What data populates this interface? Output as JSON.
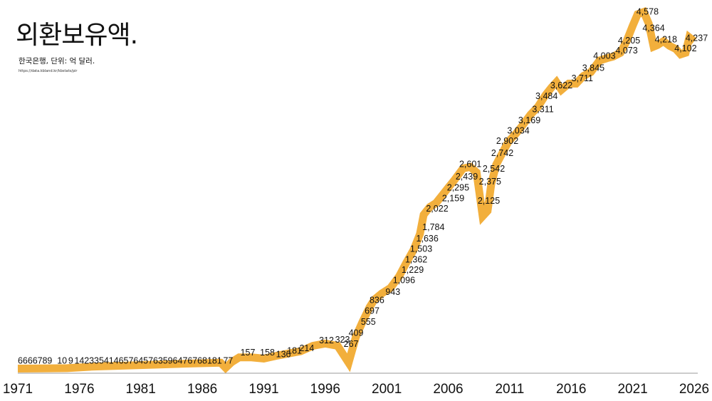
{
  "header": {
    "title": "외환보유액.",
    "subtitle": "한국은행, 단위: 억 달러.",
    "source": "https://data.kbland.kr/kbstats/pir"
  },
  "chart_data": {
    "type": "line",
    "title": "외환보유액.",
    "subtitle": "한국은행, 단위: 억 달러.",
    "xlabel": "",
    "ylabel": "억 달러",
    "xlim": [
      1971,
      2026
    ],
    "ylim": [
      0,
      4600
    ],
    "grid": false,
    "color": "#F2AF3C",
    "x_ticks": [
      "1971",
      "1976",
      "1981",
      "1986",
      "1991",
      "1996",
      "2001",
      "2006",
      "2011",
      "2016",
      "2021",
      "2026"
    ],
    "series": [
      {
        "name": "외환보유액",
        "points": [
          [
            1971,
            5
          ],
          [
            1973,
            7
          ],
          [
            1975,
            10
          ],
          [
            1977,
            30
          ],
          [
            1980,
            45
          ],
          [
            1983,
            60
          ],
          [
            1985,
            70
          ],
          [
            1987.5,
            80
          ],
          [
            1987.9,
            15
          ],
          [
            1988.4,
            90
          ],
          [
            1989,
            150
          ],
          [
            1990,
            150
          ],
          [
            1991,
            135
          ],
          [
            1992,
            170
          ],
          [
            1993,
            200
          ],
          [
            1994,
            230
          ],
          [
            1995,
            300
          ],
          [
            1996,
            330
          ],
          [
            1997,
            300
          ],
          [
            1997.9,
            80
          ],
          [
            1998.5,
            420
          ],
          [
            1999,
            600
          ],
          [
            1999.6,
            800
          ],
          [
            2000,
            900
          ],
          [
            2000.6,
            980
          ],
          [
            2001.3,
            1050
          ],
          [
            2002,
            1200
          ],
          [
            2002.6,
            1380
          ],
          [
            2003.2,
            1550
          ],
          [
            2003.7,
            1750
          ],
          [
            2004,
            2000
          ],
          [
            2004.5,
            2100
          ],
          [
            2005,
            2150
          ],
          [
            2005.5,
            2250
          ],
          [
            2006,
            2350
          ],
          [
            2006.5,
            2450
          ],
          [
            2007.2,
            2600
          ],
          [
            2007.8,
            2620
          ],
          [
            2008.3,
            2550
          ],
          [
            2008.8,
            1980
          ],
          [
            2009.2,
            2050
          ],
          [
            2009.5,
            2400
          ],
          [
            2009.9,
            2650
          ],
          [
            2010.4,
            2800
          ],
          [
            2010.9,
            2950
          ],
          [
            2011.5,
            3050
          ],
          [
            2012,
            3150
          ],
          [
            2012.7,
            3300
          ],
          [
            2013.3,
            3400
          ],
          [
            2013.9,
            3550
          ],
          [
            2014.4,
            3650
          ],
          [
            2014.8,
            3720
          ],
          [
            2015.2,
            3620
          ],
          [
            2015.8,
            3700
          ],
          [
            2016.4,
            3700
          ],
          [
            2017,
            3800
          ],
          [
            2017.6,
            3850
          ],
          [
            2018.3,
            4000
          ],
          [
            2018.9,
            4030
          ],
          [
            2019.4,
            4050
          ],
          [
            2020,
            4100
          ],
          [
            2020.5,
            4250
          ],
          [
            2021,
            4450
          ],
          [
            2021.4,
            4600
          ],
          [
            2021.9,
            4630
          ],
          [
            2022.3,
            4480
          ],
          [
            2022.7,
            4180
          ],
          [
            2023,
            4200
          ],
          [
            2023.5,
            4250
          ],
          [
            2024,
            4190
          ],
          [
            2024.5,
            4150
          ],
          [
            2024.9,
            4080
          ],
          [
            2025.3,
            4100
          ],
          [
            2025.6,
            4300
          ],
          [
            2026,
            4250
          ]
        ]
      }
    ],
    "data_labels": [
      {
        "text": "6",
        "x": 1971.2,
        "y": 50
      },
      {
        "text": "6",
        "x": 1971.6,
        "y": 50
      },
      {
        "text": "6",
        "x": 1972.0,
        "y": 50
      },
      {
        "text": "6",
        "x": 1972.4,
        "y": 50
      },
      {
        "text": "7",
        "x": 1972.8,
        "y": 50
      },
      {
        "text": "8",
        "x": 1973.2,
        "y": 50
      },
      {
        "text": "9",
        "x": 1973.6,
        "y": 50
      },
      {
        "text": "10",
        "x": 1974.6,
        "y": 50
      },
      {
        "text": "9",
        "x": 1975.3,
        "y": 50
      },
      {
        "text": "14",
        "x": 1976.0,
        "y": 50
      },
      {
        "text": "23",
        "x": 1976.8,
        "y": 50
      },
      {
        "text": "35",
        "x": 1977.6,
        "y": 50
      },
      {
        "text": "41",
        "x": 1978.4,
        "y": 50
      },
      {
        "text": "46",
        "x": 1979.2,
        "y": 50
      },
      {
        "text": "57",
        "x": 1980.0,
        "y": 50
      },
      {
        "text": "64",
        "x": 1980.8,
        "y": 50
      },
      {
        "text": "57",
        "x": 1981.6,
        "y": 50
      },
      {
        "text": "63",
        "x": 1982.4,
        "y": 50
      },
      {
        "text": "59",
        "x": 1983.2,
        "y": 50
      },
      {
        "text": "64",
        "x": 1984.0,
        "y": 50
      },
      {
        "text": "76",
        "x": 1984.8,
        "y": 50
      },
      {
        "text": "76",
        "x": 1985.6,
        "y": 50
      },
      {
        "text": "81",
        "x": 1986.4,
        "y": 50
      },
      {
        "text": "81",
        "x": 1987.2,
        "y": 50
      },
      {
        "text": "77",
        "x": 1988.1,
        "y": 50
      },
      {
        "text": "157",
        "x": 1989.7,
        "y": 157
      },
      {
        "text": "158",
        "x": 1991.3,
        "y": 158
      },
      {
        "text": "136",
        "x": 1992.6,
        "y": 136
      },
      {
        "text": "181",
        "x": 1993.5,
        "y": 181
      },
      {
        "text": "214",
        "x": 1994.5,
        "y": 214
      },
      {
        "text": "312",
        "x": 1996.1,
        "y": 312
      },
      {
        "text": "323",
        "x": 1997.4,
        "y": 323
      },
      {
        "text": "267",
        "x": 1998.1,
        "y": 267
      },
      {
        "text": "409",
        "x": 1998.5,
        "y": 409
      },
      {
        "text": "555",
        "x": 1999.5,
        "y": 555
      },
      {
        "text": "697",
        "x": 1999.8,
        "y": 697
      },
      {
        "text": "836",
        "x": 2000.2,
        "y": 836
      },
      {
        "text": "943",
        "x": 2001.5,
        "y": 943
      },
      {
        "text": "1,096",
        "x": 2002.4,
        "y": 1096
      },
      {
        "text": "1,229",
        "x": 2003.1,
        "y": 1229
      },
      {
        "text": "1,362",
        "x": 2003.4,
        "y": 1362
      },
      {
        "text": "1,503",
        "x": 2003.8,
        "y": 1503
      },
      {
        "text": "1,636",
        "x": 2004.3,
        "y": 1636
      },
      {
        "text": "1,784",
        "x": 2004.8,
        "y": 1784
      },
      {
        "text": "2,022",
        "x": 2005.1,
        "y": 2022
      },
      {
        "text": "2,159",
        "x": 2006.4,
        "y": 2159
      },
      {
        "text": "2,295",
        "x": 2006.8,
        "y": 2295
      },
      {
        "text": "2,439",
        "x": 2007.5,
        "y": 2439
      },
      {
        "text": "2,601",
        "x": 2007.8,
        "y": 2601
      },
      {
        "text": "2,125",
        "x": 2009.3,
        "y": 2125
      },
      {
        "text": "2,375",
        "x": 2009.4,
        "y": 2375
      },
      {
        "text": "2,542",
        "x": 2009.7,
        "y": 2542
      },
      {
        "text": "2,742",
        "x": 2010.4,
        "y": 2742
      },
      {
        "text": "2,902",
        "x": 2010.8,
        "y": 2902
      },
      {
        "text": "3,034",
        "x": 2011.7,
        "y": 3034
      },
      {
        "text": "3,169",
        "x": 2012.6,
        "y": 3169
      },
      {
        "text": "3,311",
        "x": 2013.7,
        "y": 3311
      },
      {
        "text": "3,484",
        "x": 2014.0,
        "y": 3484
      },
      {
        "text": "3,622",
        "x": 2015.2,
        "y": 3622
      },
      {
        "text": "3,711",
        "x": 2016.9,
        "y": 3711
      },
      {
        "text": "3,845",
        "x": 2017.8,
        "y": 3845
      },
      {
        "text": "4,003",
        "x": 2018.7,
        "y": 4003
      },
      {
        "text": "4,073",
        "x": 2020.5,
        "y": 4073
      },
      {
        "text": "4,205",
        "x": 2020.7,
        "y": 4205
      },
      {
        "text": "4,578",
        "x": 2022.2,
        "y": 4578
      },
      {
        "text": "4,364",
        "x": 2022.7,
        "y": 4364
      },
      {
        "text": "4,218",
        "x": 2023.7,
        "y": 4218
      },
      {
        "text": "4,102",
        "x": 2025.3,
        "y": 4102
      },
      {
        "text": "4,237",
        "x": 2026.2,
        "y": 4237
      }
    ]
  }
}
